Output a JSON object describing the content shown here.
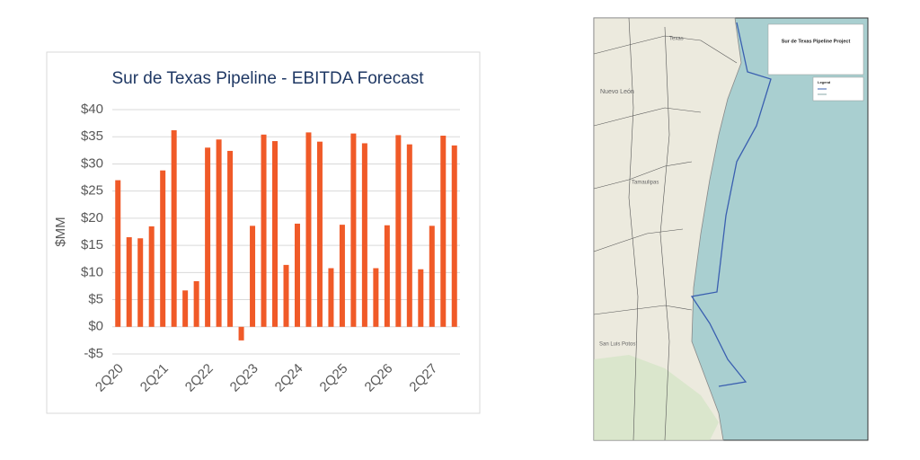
{
  "chart_data": {
    "type": "bar",
    "title": "Sur de Texas Pipeline - EBITDA Forecast",
    "y_label": "$MM",
    "categories": [
      "2Q20",
      null,
      null,
      null,
      "2Q21",
      null,
      null,
      null,
      "2Q22",
      null,
      null,
      null,
      "2Q23",
      null,
      null,
      null,
      "2Q24",
      null,
      null,
      null,
      "2Q25",
      null,
      null,
      null,
      "2Q26",
      null,
      null,
      null,
      "2Q27",
      null,
      null
    ],
    "values": [
      27,
      16.5,
      16.3,
      18.5,
      28.8,
      36.2,
      6.7,
      8.4,
      33,
      34.5,
      32.4,
      -2.5,
      18.6,
      35.4,
      34.2,
      11.4,
      19,
      35.8,
      34.1,
      10.8,
      18.8,
      35.6,
      33.8,
      10.8,
      18.7,
      35.3,
      33.6,
      10.6,
      18.6,
      35.2,
      33.4
    ],
    "color": "#f05a28",
    "ylim": [
      -5,
      40
    ],
    "yticks": [
      {
        "value": -5,
        "label": "-$5"
      },
      {
        "value": 0,
        "label": "$0"
      },
      {
        "value": 5,
        "label": "$5"
      },
      {
        "value": 10,
        "label": "$10"
      },
      {
        "value": 15,
        "label": "$15"
      },
      {
        "value": 20,
        "label": "$20"
      },
      {
        "value": 25,
        "label": "$25"
      },
      {
        "value": 30,
        "label": "$30"
      },
      {
        "value": 35,
        "label": "$35"
      },
      {
        "value": 40,
        "label": "$40"
      }
    ],
    "grid": true
  },
  "map": {
    "title": "Sur de Texas Pipeline Project",
    "legend_title": "Legend",
    "places": [
      "Texas",
      "Nuevo León",
      "Tamaulipas",
      "San Luis Potosí"
    ]
  }
}
